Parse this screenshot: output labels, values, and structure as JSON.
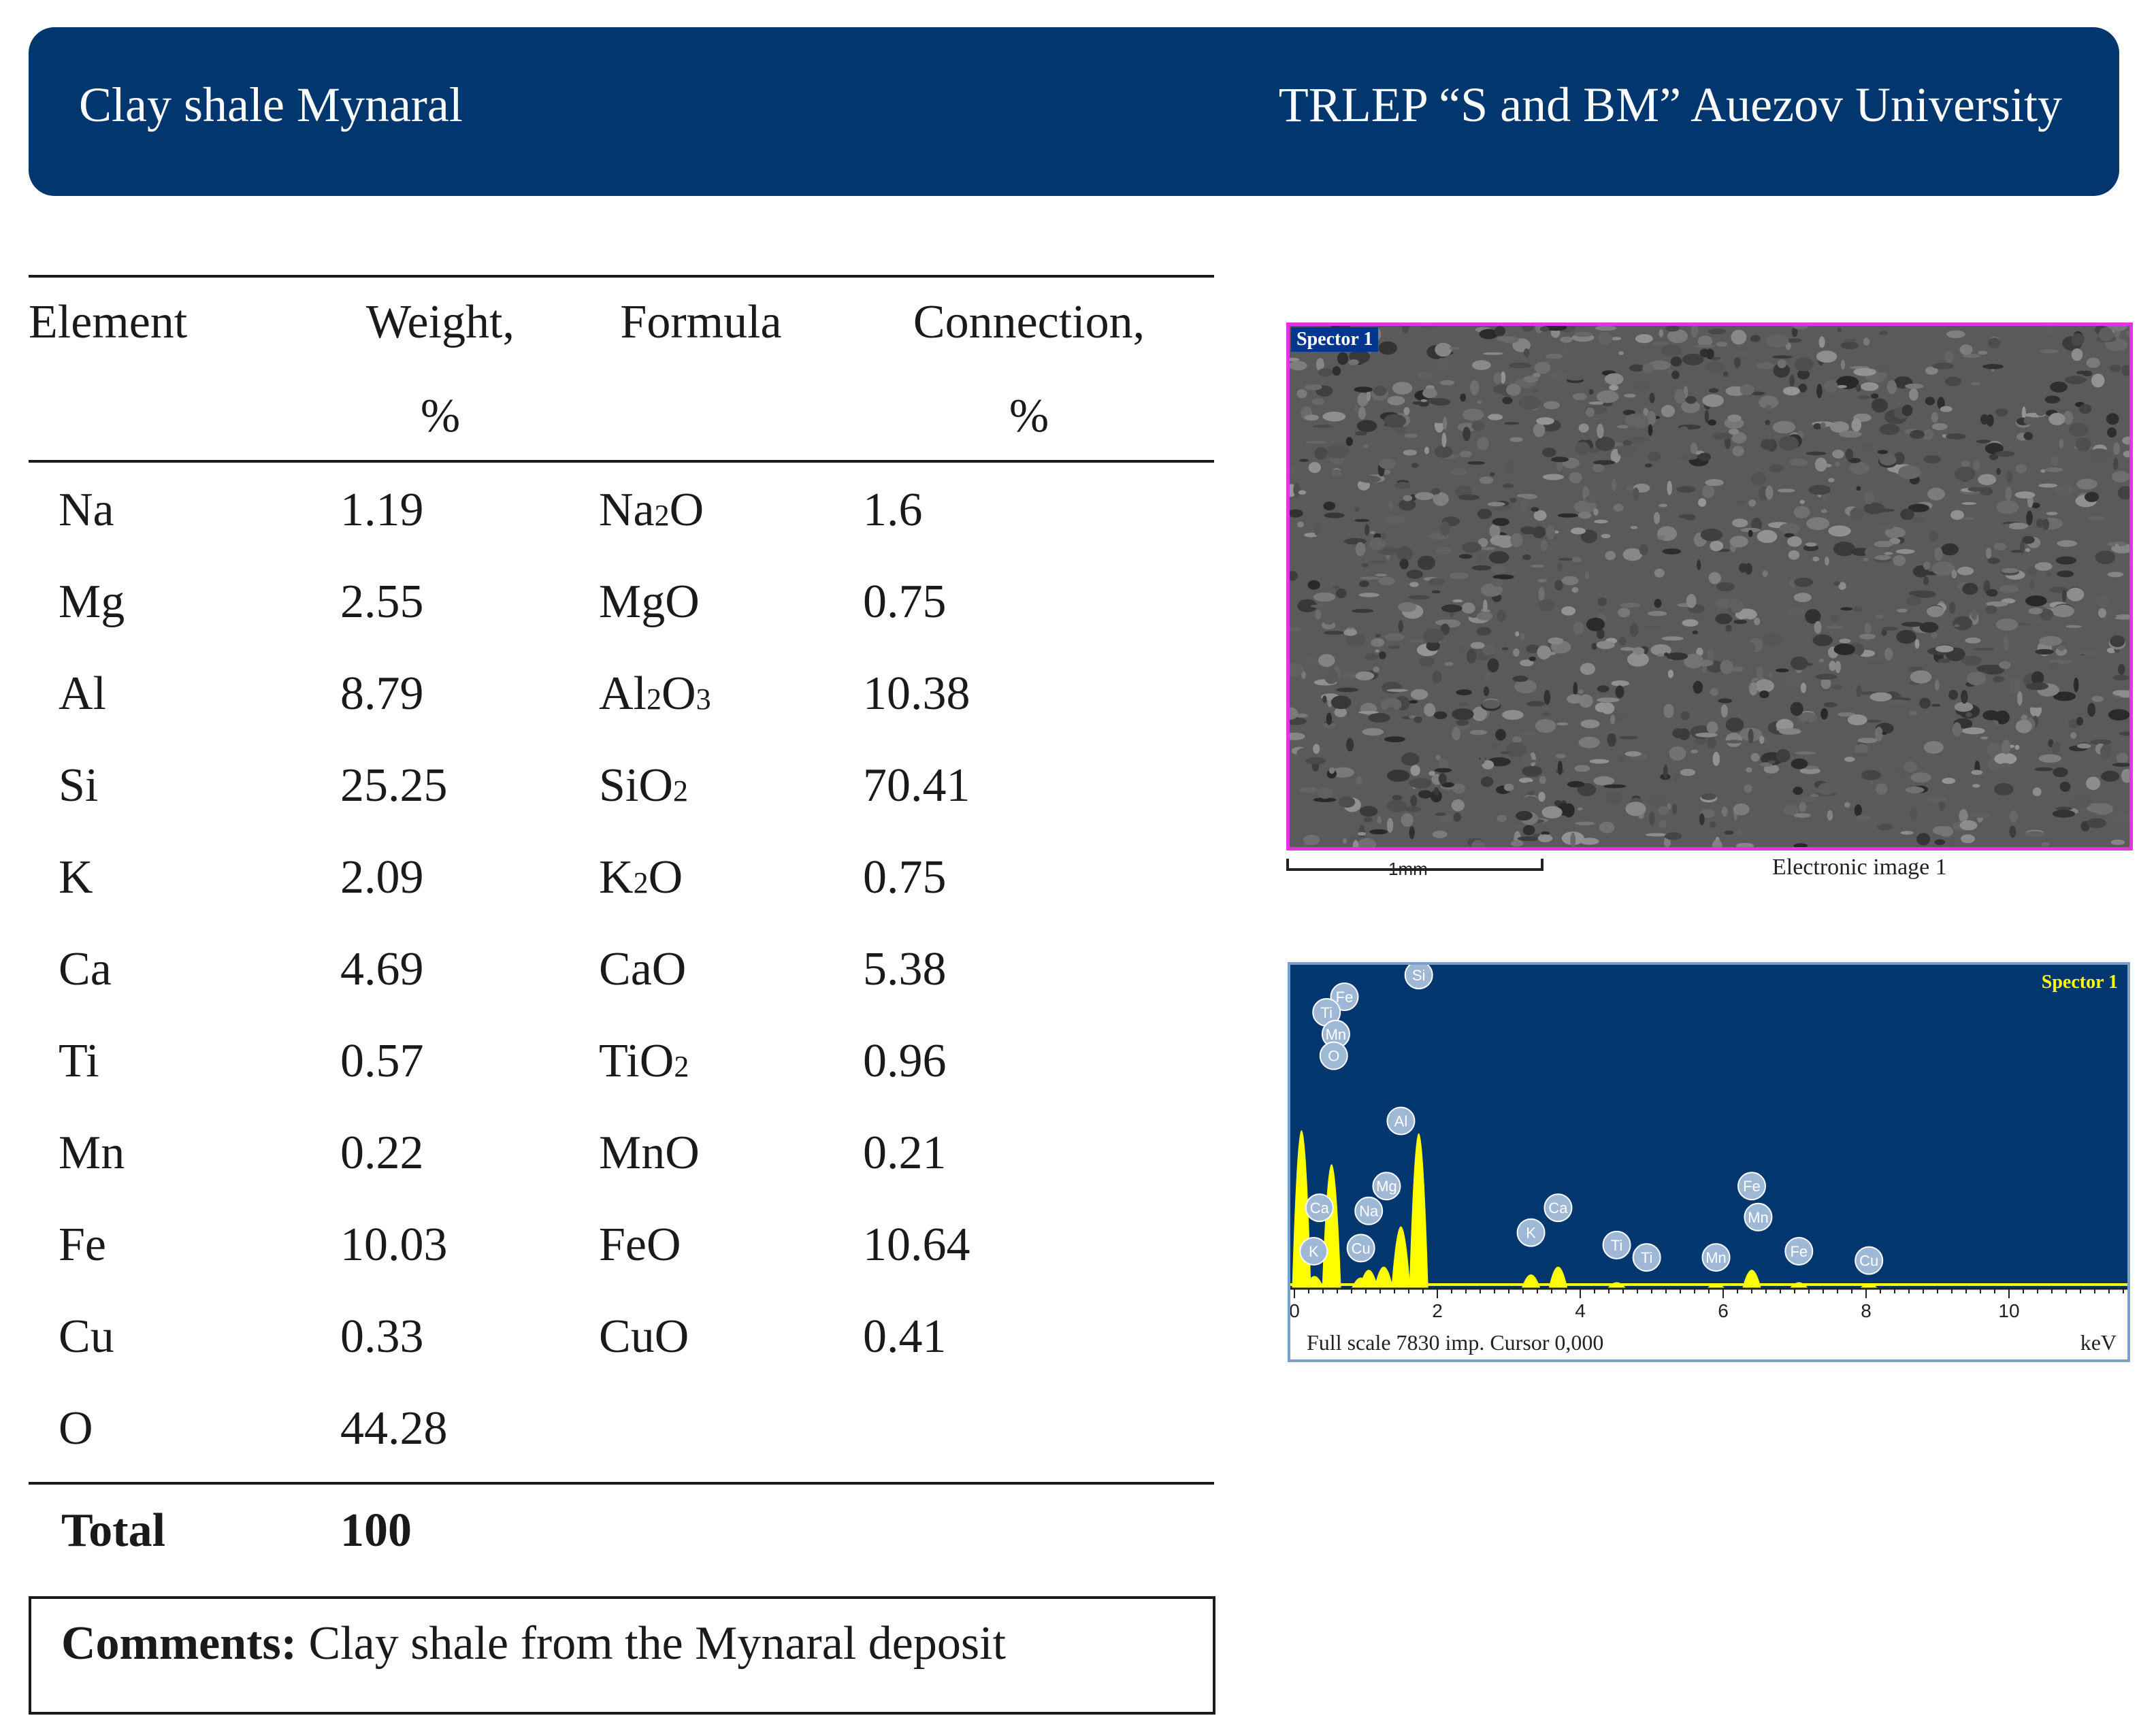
{
  "header": {
    "left_title": "Clay shale Mynaral",
    "right_title": "TRLEP “S and BM” Auezov University"
  },
  "table": {
    "headers": {
      "element": "Element",
      "weight_line1": "Weight,",
      "weight_line2": "%",
      "formula": "Formula",
      "connection_line1": "Connection,",
      "connection_line2": "%"
    },
    "rows": [
      {
        "element": "Na",
        "weight": "1.19",
        "formula": "Na",
        "formula_sub": "2",
        "formula_tail": "O",
        "connection": "1.6"
      },
      {
        "element": "Mg",
        "weight": "2.55",
        "formula": "MgO",
        "formula_sub": "",
        "formula_tail": "",
        "connection": "0.75"
      },
      {
        "element": "Al",
        "weight": "8.79",
        "formula": "Al",
        "formula_sub": "2",
        "formula_tail": "O",
        "formula_sub2": "3",
        "connection": "10.38"
      },
      {
        "element": "Si",
        "weight": "25.25",
        "formula": "SiO",
        "formula_sub": "2",
        "formula_tail": "",
        "connection": "70.41"
      },
      {
        "element": "K",
        "weight": "2.09",
        "formula": "K",
        "formula_sub": "2",
        "formula_tail": "O",
        "connection": "0.75"
      },
      {
        "element": "Ca",
        "weight": "4.69",
        "formula": "CaO",
        "formula_sub": "",
        "formula_tail": "",
        "connection": "5.38"
      },
      {
        "element": "Ti",
        "weight": "0.57",
        "formula": "TiO",
        "formula_sub": "2",
        "formula_tail": "",
        "connection": "0.96"
      },
      {
        "element": "Mn",
        "weight": "0.22",
        "formula": "MnO",
        "formula_sub": "",
        "formula_tail": "",
        "connection": "0.21"
      },
      {
        "element": "Fe",
        "weight": "10.03",
        "formula": "FeO",
        "formula_sub": "",
        "formula_tail": "",
        "connection": "10.64"
      },
      {
        "element": "Cu",
        "weight": "0.33",
        "formula": "CuO",
        "formula_sub": "",
        "formula_tail": "",
        "connection": "0.41"
      },
      {
        "element": "O",
        "weight": "44.28",
        "formula": "",
        "formula_sub": "",
        "formula_tail": "",
        "connection": ""
      }
    ],
    "total_label": "Total",
    "total_value": "100"
  },
  "comments": {
    "label": "Comments:",
    "text": " Clay shale from the Mynaral deposit"
  },
  "sem_image": {
    "tag": "Spector 1",
    "scale_label": "1mm",
    "caption": "Electronic image 1",
    "frame_color": "#e432e4"
  },
  "spectrum": {
    "tag": "Spector 1",
    "footer": "Full scale 7830 imp. Cursor 0,000",
    "unit": "keV",
    "x_ticks": [
      "0",
      "2",
      "4",
      "6",
      "8",
      "10"
    ],
    "xlim": [
      0,
      11.6
    ],
    "background_color": "#02366e",
    "peak_color": "#ffff00",
    "peaks": [
      {
        "keV": 0.1,
        "height": 1.0
      },
      {
        "keV": 0.28,
        "height": 0.06
      },
      {
        "keV": 0.52,
        "height": 0.78
      },
      {
        "keV": 0.93,
        "height": 0.05
      },
      {
        "keV": 1.04,
        "height": 0.1
      },
      {
        "keV": 1.25,
        "height": 0.12
      },
      {
        "keV": 1.49,
        "height": 0.38
      },
      {
        "keV": 1.74,
        "height": 0.98
      },
      {
        "keV": 3.31,
        "height": 0.07
      },
      {
        "keV": 3.69,
        "height": 0.12
      },
      {
        "keV": 4.51,
        "height": 0.02
      },
      {
        "keV": 5.9,
        "height": 0.01
      },
      {
        "keV": 6.4,
        "height": 0.1
      },
      {
        "keV": 7.06,
        "height": 0.02
      },
      {
        "keV": 8.04,
        "height": 0.01
      }
    ],
    "element_labels": [
      {
        "text": "Si",
        "keV": 1.74,
        "level": 0.98
      },
      {
        "text": "Fe",
        "keV": 0.7,
        "level": 0.91
      },
      {
        "text": "Ti",
        "keV": 0.45,
        "level": 0.86
      },
      {
        "text": "Mn",
        "keV": 0.58,
        "level": 0.79
      },
      {
        "text": "O",
        "keV": 0.55,
        "level": 0.72
      },
      {
        "text": "Al",
        "keV": 1.49,
        "level": 0.51
      },
      {
        "text": "Mg",
        "keV": 1.29,
        "level": 0.3
      },
      {
        "text": "Ca",
        "keV": 0.35,
        "level": 0.23
      },
      {
        "text": "Na",
        "keV": 1.04,
        "level": 0.22
      },
      {
        "text": "K",
        "keV": 0.27,
        "level": 0.09
      },
      {
        "text": "Cu",
        "keV": 0.93,
        "level": 0.1
      },
      {
        "text": "K",
        "keV": 3.31,
        "level": 0.15
      },
      {
        "text": "Ca",
        "keV": 3.69,
        "level": 0.23
      },
      {
        "text": "Ti",
        "keV": 4.51,
        "level": 0.11
      },
      {
        "text": "Ti",
        "keV": 4.93,
        "level": 0.07
      },
      {
        "text": "Mn",
        "keV": 5.9,
        "level": 0.07
      },
      {
        "text": "Fe",
        "keV": 6.4,
        "level": 0.3
      },
      {
        "text": "Mn",
        "keV": 6.49,
        "level": 0.2
      },
      {
        "text": "Fe",
        "keV": 7.06,
        "level": 0.09
      },
      {
        "text": "Cu",
        "keV": 8.04,
        "level": 0.06
      }
    ]
  }
}
